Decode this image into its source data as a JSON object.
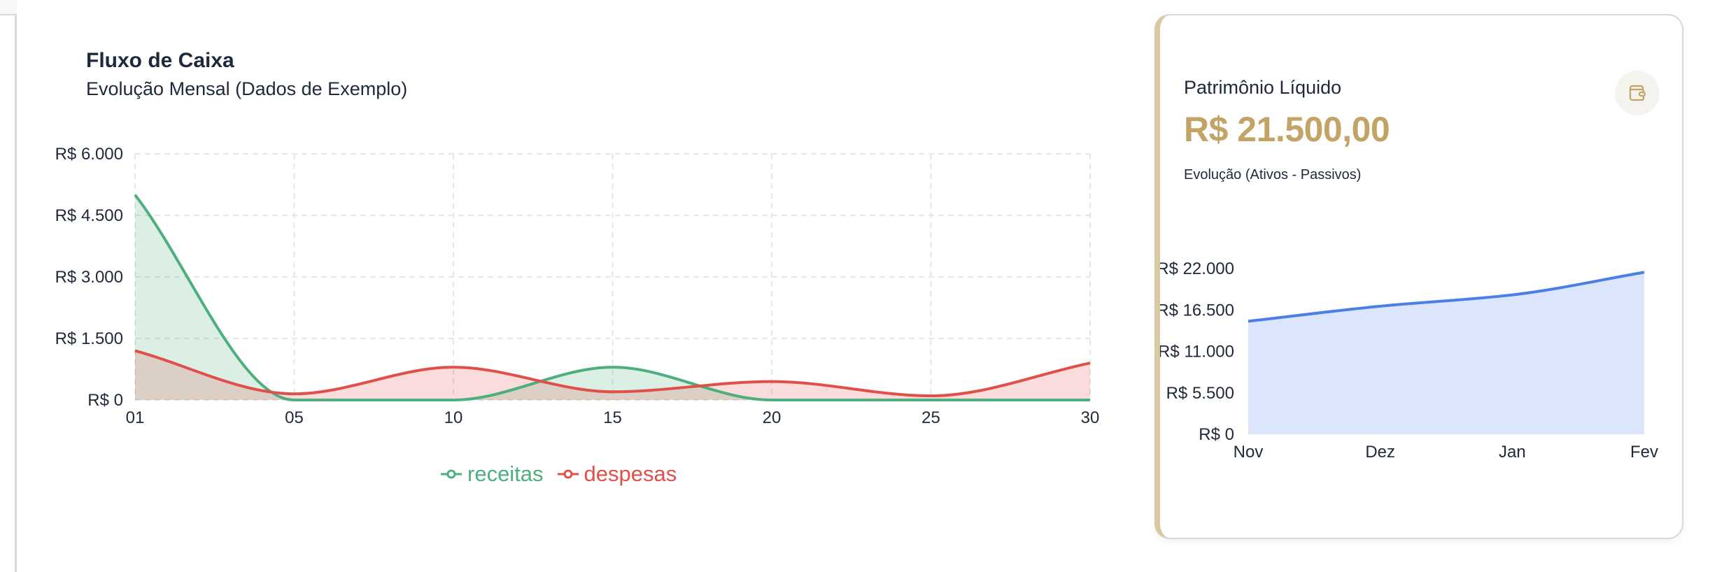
{
  "cash_flow": {
    "title": "Fluxo de Caixa",
    "subtitle": "Evolução Mensal (Dados de Exemplo)",
    "y_ticks": [
      "R$ 6.000",
      "R$ 4.500",
      "R$ 3.000",
      "R$ 1.500",
      "R$ 0"
    ],
    "x_ticks": [
      "01",
      "05",
      "10",
      "15",
      "20",
      "25",
      "30"
    ],
    "legend": [
      {
        "label": "receitas",
        "color": "#4caf7d"
      },
      {
        "label": "despesas",
        "color": "#e0504b"
      }
    ]
  },
  "net_worth": {
    "title": "Patrimônio Líquido",
    "value": "R$ 21.500,00",
    "subtitle": "Evolução (Ativos - Passivos)",
    "icon": "wallet-icon",
    "y_ticks": [
      "R$ 22.000",
      "R$ 16.500",
      "R$ 11.000",
      "R$ 5.500",
      "R$ 0"
    ],
    "x_ticks": [
      "Nov",
      "Dez",
      "Jan",
      "Fev"
    ],
    "accent_color": "#c1a466",
    "line_color": "#4a7fe6"
  },
  "chart_data": [
    {
      "type": "area",
      "title": "Fluxo de Caixa",
      "subtitle": "Evolução Mensal (Dados de Exemplo)",
      "categories": [
        "01",
        "05",
        "10",
        "15",
        "20",
        "25",
        "30"
      ],
      "series": [
        {
          "name": "receitas",
          "color": "#4caf7d",
          "values": [
            5000,
            0,
            0,
            800,
            0,
            0,
            0
          ]
        },
        {
          "name": "despesas",
          "color": "#e0504b",
          "values": [
            1200,
            150,
            800,
            200,
            450,
            100,
            900
          ]
        }
      ],
      "xlabel": "",
      "ylabel": "",
      "ylim": [
        0,
        6000
      ],
      "y_ticks": [
        0,
        1500,
        3000,
        4500,
        6000
      ],
      "grid": true,
      "legend_position": "bottom"
    },
    {
      "type": "area",
      "title": "Patrimônio Líquido",
      "subtitle": "Evolução (Ativos - Passivos)",
      "categories": [
        "Nov",
        "Dez",
        "Jan",
        "Fev"
      ],
      "series": [
        {
          "name": "Patrimônio Líquido",
          "color": "#4a7fe6",
          "values": [
            15000,
            17000,
            18500,
            21500
          ]
        }
      ],
      "xlabel": "",
      "ylabel": "",
      "ylim": [
        0,
        22000
      ],
      "y_ticks": [
        0,
        5500,
        11000,
        16500,
        22000
      ],
      "grid": false,
      "legend_position": "none"
    }
  ]
}
